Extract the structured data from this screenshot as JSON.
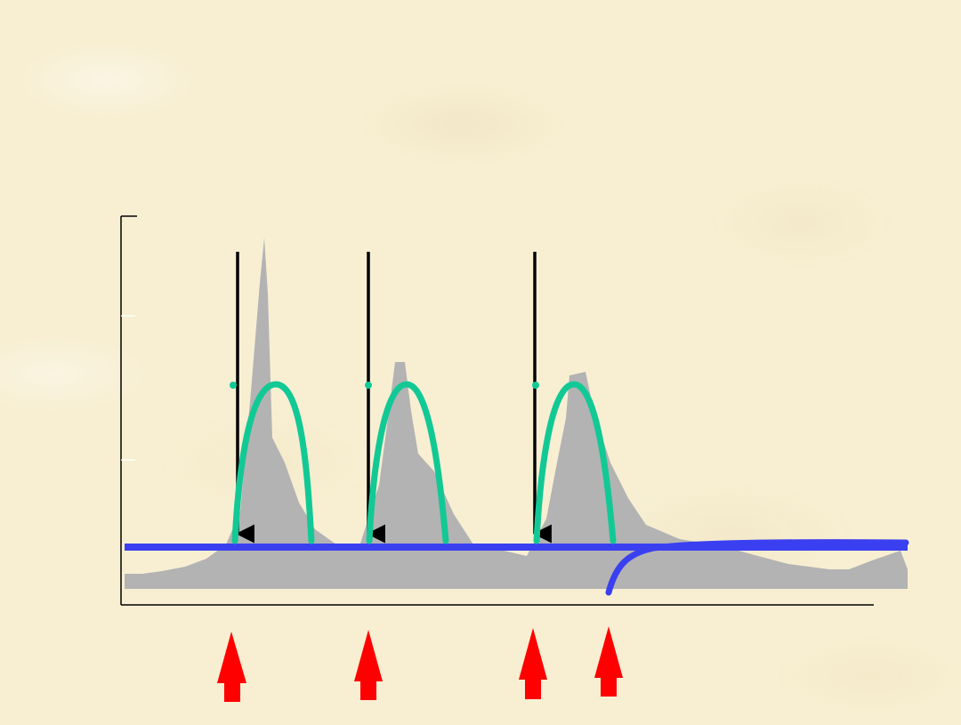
{
  "colors": {
    "background": "#f8efd3",
    "signal_fill": "#b3b3b3",
    "baseline": "#3a3ff0",
    "response_curve": "#12c995",
    "drop_arrow": "#000000",
    "stimulus_arrow": "#ff0000",
    "axis": "#000000"
  },
  "diagram": {
    "stimulus_count": 4,
    "response_count": 3,
    "elements": [
      "gray-signal-area",
      "blue-baseline",
      "blue-decline-curve",
      "green-response-arches",
      "black-down-arrows",
      "red-up-arrows"
    ]
  }
}
